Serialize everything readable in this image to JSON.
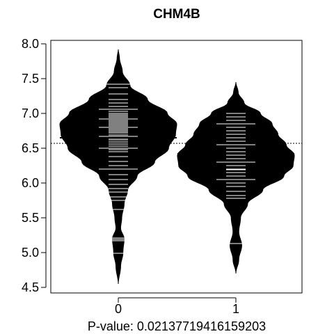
{
  "chart_data": {
    "type": "beanplot",
    "title": "CHM4B",
    "xlabel": "P-value: 0.02137719416159203",
    "ylabel": "",
    "categories": [
      "0",
      "1"
    ],
    "y_ticks": [
      4.5,
      5.0,
      5.5,
      6.0,
      6.5,
      7.0,
      7.5,
      8.0
    ],
    "y_tick_labels": [
      "4.5",
      "5.0",
      "5.5",
      "6.0",
      "6.5",
      "7.0",
      "7.5",
      "8.0"
    ],
    "ylim": [
      4.42,
      8.05
    ],
    "overall_mean": 6.57,
    "grid": false,
    "legend": "none",
    "colors": {
      "bean": "#000000",
      "points": "#ffffff",
      "axis": "#000000"
    },
    "series": [
      {
        "category": "0",
        "mean": 6.65,
        "range": [
          4.55,
          7.92
        ],
        "density": [
          [
            4.55,
            0.0
          ],
          [
            4.8,
            0.04
          ],
          [
            5.0,
            0.08
          ],
          [
            5.2,
            0.1
          ],
          [
            5.35,
            0.04
          ],
          [
            5.5,
            0.06
          ],
          [
            5.7,
            0.1
          ],
          [
            5.9,
            0.16
          ],
          [
            6.1,
            0.32
          ],
          [
            6.3,
            0.62
          ],
          [
            6.5,
            0.86
          ],
          [
            6.7,
            0.98
          ],
          [
            6.85,
            1.0
          ],
          [
            7.0,
            0.84
          ],
          [
            7.2,
            0.5
          ],
          [
            7.4,
            0.2
          ],
          [
            7.6,
            0.07
          ],
          [
            7.8,
            0.02
          ],
          [
            7.92,
            0.0
          ]
        ],
        "points": [
          4.99,
          5.17,
          5.19,
          5.21,
          5.62,
          5.75,
          5.8,
          5.87,
          5.92,
          5.98,
          6.05,
          6.12,
          6.2,
          6.25,
          6.31,
          6.38,
          6.45,
          6.48,
          6.5,
          6.53,
          6.56,
          6.59,
          6.62,
          6.64,
          6.67,
          6.69,
          6.72,
          6.74,
          6.76,
          6.78,
          6.8,
          6.82,
          6.84,
          6.86,
          6.88,
          6.9,
          6.92,
          6.94,
          6.96,
          6.98,
          7.0,
          7.03,
          7.06,
          7.1,
          7.15,
          7.2,
          7.28,
          7.37,
          7.42
        ]
      },
      {
        "category": "1",
        "mean": 6.42,
        "range": [
          4.7,
          7.45
        ],
        "density": [
          [
            4.7,
            0.0
          ],
          [
            4.9,
            0.05
          ],
          [
            5.1,
            0.1
          ],
          [
            5.3,
            0.05
          ],
          [
            5.5,
            0.08
          ],
          [
            5.7,
            0.2
          ],
          [
            5.9,
            0.46
          ],
          [
            6.1,
            0.82
          ],
          [
            6.25,
            0.98
          ],
          [
            6.4,
            1.0
          ],
          [
            6.55,
            0.86
          ],
          [
            6.7,
            0.72
          ],
          [
            6.85,
            0.62
          ],
          [
            7.0,
            0.42
          ],
          [
            7.15,
            0.14
          ],
          [
            7.3,
            0.04
          ],
          [
            7.45,
            0.0
          ]
        ],
        "points": [
          5.13,
          5.78,
          5.82,
          5.88,
          5.95,
          6.0,
          6.05,
          6.1,
          6.15,
          6.19,
          6.2,
          6.25,
          6.3,
          6.35,
          6.4,
          6.42,
          6.45,
          6.5,
          6.55,
          6.6,
          6.65,
          6.7,
          6.75,
          6.8,
          6.85,
          6.9,
          6.95,
          7.0
        ]
      }
    ]
  }
}
